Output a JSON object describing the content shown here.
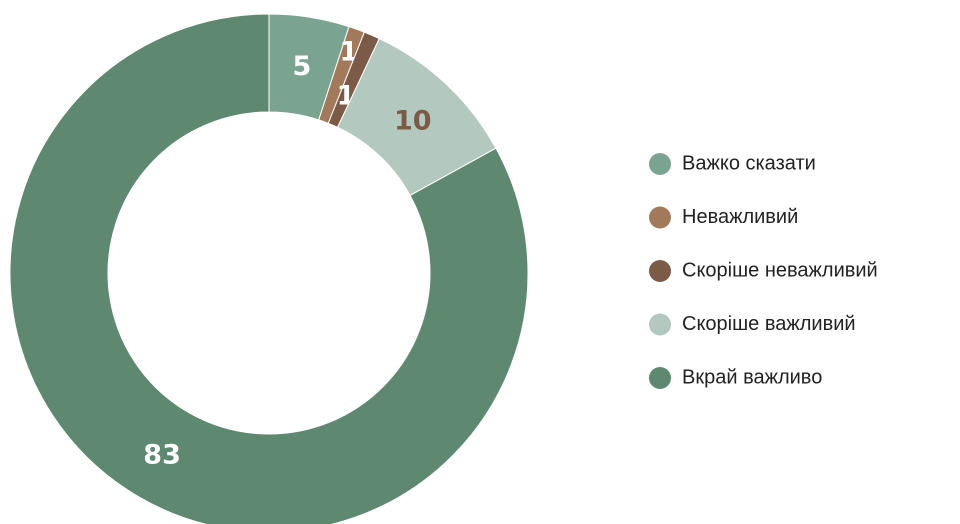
{
  "chart_data": {
    "type": "donut",
    "categories": [
      "Важко сказати",
      "Неважливий",
      "Скоріше неважливий",
      "Скоріше важливий",
      "Вкрай важливо"
    ],
    "values": [
      5,
      1,
      1,
      10,
      83
    ],
    "colors": [
      "#7aa491",
      "#a27a5b",
      "#7b5a48",
      "#b3c9c0",
      "#5e8870"
    ],
    "label_colors": [
      "#ffffff",
      "#ffffff",
      "#ffffff",
      "#7b5a48",
      "#ffffff"
    ],
    "legend": "right"
  }
}
